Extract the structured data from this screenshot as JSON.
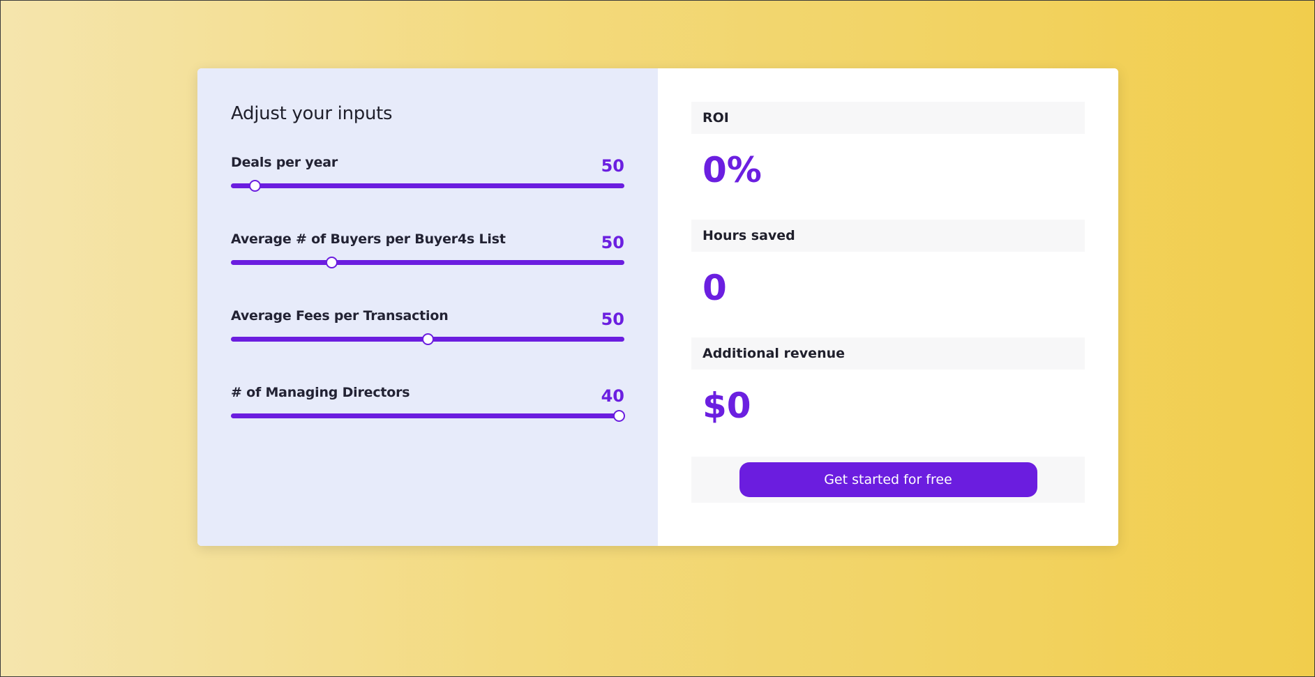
{
  "inputs": {
    "title": "Adjust your inputs",
    "sliders": [
      {
        "label": "Deals per year",
        "value": "50",
        "fraction": 0.06
      },
      {
        "label": "Average # of Buyers per Buyer4s List",
        "value": "50",
        "fraction": 0.255
      },
      {
        "label": "Average Fees per Transaction",
        "value": "50",
        "fraction": 0.5
      },
      {
        "label": "# of Managing Directors",
        "value": "40",
        "fraction": 0.985
      }
    ]
  },
  "results": {
    "roi": {
      "label": "ROI",
      "value": "0%"
    },
    "hours_saved": {
      "label": "Hours saved",
      "value": "0"
    },
    "additional_revenue": {
      "label": "Additional revenue",
      "value": "$0"
    }
  },
  "cta": {
    "label": "Get started for free"
  },
  "colors": {
    "accent": "#6b1ddf",
    "left_panel": "#e7ebfa",
    "label_box": "#f7f7f8"
  }
}
